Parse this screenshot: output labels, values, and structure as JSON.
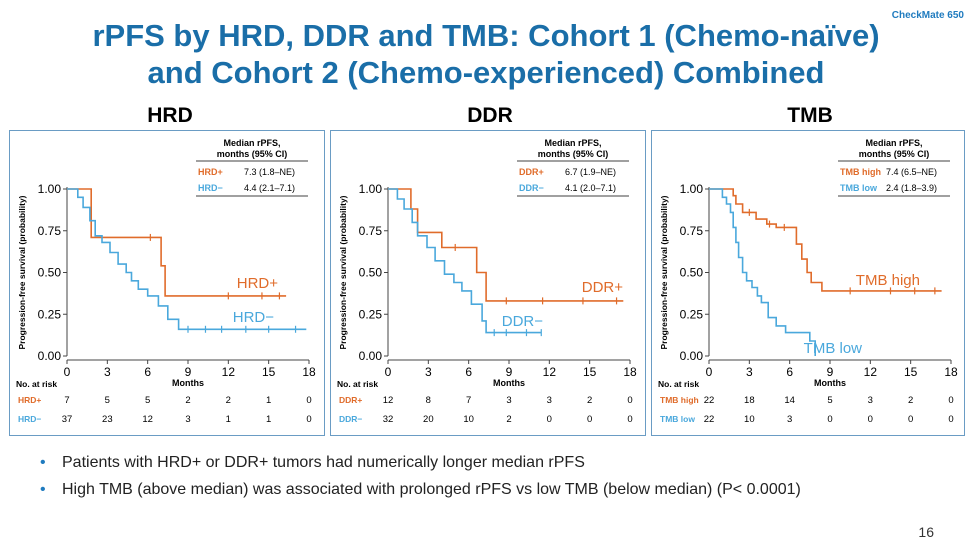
{
  "header": {
    "study_tag": "CheckMate 650",
    "title_line1": "rPFS by HRD, DDR and TMB: Cohort 1 (Chemo-naïve)",
    "title_line2": "and Cohort 2 (Chemo-experienced) Combined"
  },
  "colors": {
    "accent": "#1a6ea8",
    "positive": "#e06c2b",
    "negative": "#4aa8dc",
    "frame": "#6a9cc4"
  },
  "chart_data": [
    {
      "type": "line",
      "panel_title": "HRD",
      "xlabel": "Months",
      "ylabel": "Progression-free survival (probability)",
      "xlim": [
        0,
        18
      ],
      "ylim": [
        0,
        1
      ],
      "x_ticks": [
        "0",
        "3",
        "6",
        "9",
        "12",
        "15",
        "18"
      ],
      "y_ticks": [
        "0.00",
        "0.25",
        "0.50",
        "0.75",
        "1.00"
      ],
      "legend_header": [
        "Median rPFS,",
        "months (95% CI)"
      ],
      "series": [
        {
          "name": "HRD+",
          "legend_label": "HRD+",
          "legend_value": "7.3 (1.8–NE)",
          "curve_label": "HRD+",
          "color": "#e06c2b",
          "x": [
            0,
            1.8,
            1.8,
            7.0,
            7.0,
            7.3,
            7.3,
            16.3
          ],
          "y": [
            1.0,
            1.0,
            0.71,
            0.71,
            0.54,
            0.54,
            0.36,
            0.36
          ],
          "censor_x": [
            6.2,
            12.0,
            14.5,
            15.8
          ]
        },
        {
          "name": "HRD−",
          "legend_label": "HRD−",
          "legend_value": "4.4 (2.1–7.1)",
          "curve_label": "HRD−",
          "color": "#4aa8dc",
          "x": [
            0,
            0.8,
            0.8,
            1.2,
            1.2,
            1.7,
            1.7,
            2.1,
            2.1,
            2.6,
            2.6,
            3.2,
            3.2,
            3.8,
            3.8,
            4.4,
            4.4,
            4.8,
            4.8,
            5.3,
            5.3,
            6.0,
            6.0,
            6.8,
            6.8,
            7.5,
            7.5,
            8.3,
            8.3,
            17.8
          ],
          "y": [
            1.0,
            1.0,
            0.95,
            0.95,
            0.89,
            0.89,
            0.81,
            0.81,
            0.72,
            0.72,
            0.68,
            0.68,
            0.62,
            0.62,
            0.55,
            0.55,
            0.5,
            0.5,
            0.45,
            0.45,
            0.4,
            0.4,
            0.36,
            0.36,
            0.3,
            0.3,
            0.22,
            0.22,
            0.16,
            0.16
          ],
          "censor_x": [
            9.0,
            10.3,
            11.5,
            13.3,
            15.0,
            17.0
          ]
        }
      ],
      "risk_table": {
        "label": "No. at risk",
        "rows": [
          {
            "name": "HRD+",
            "values": [
              "7",
              "5",
              "5",
              "2",
              "2",
              "1",
              "0"
            ]
          },
          {
            "name": "HRD−",
            "values": [
              "37",
              "23",
              "12",
              "3",
              "1",
              "1",
              "0"
            ]
          }
        ]
      }
    },
    {
      "type": "line",
      "panel_title": "DDR",
      "xlabel": "Months",
      "ylabel": "Progression-free survival (probability)",
      "xlim": [
        0,
        18
      ],
      "ylim": [
        0,
        1
      ],
      "x_ticks": [
        "0",
        "3",
        "6",
        "9",
        "12",
        "15",
        "18"
      ],
      "y_ticks": [
        "0.00",
        "0.25",
        "0.50",
        "0.75",
        "1.00"
      ],
      "legend_header": [
        "Median rPFS,",
        "months (95% CI)"
      ],
      "series": [
        {
          "name": "DDR+",
          "legend_label": "DDR+",
          "legend_value": "6.7 (1.9–NE)",
          "curve_label": "DDR+",
          "color": "#e06c2b",
          "x": [
            0,
            1.7,
            1.7,
            2.2,
            2.2,
            4.0,
            4.0,
            6.6,
            6.6,
            7.3,
            7.3,
            17.5
          ],
          "y": [
            1.0,
            1.0,
            0.88,
            0.88,
            0.74,
            0.74,
            0.65,
            0.65,
            0.5,
            0.5,
            0.33,
            0.33
          ],
          "censor_x": [
            5.0,
            8.8,
            11.5,
            14.5,
            17.0
          ]
        },
        {
          "name": "DDR−",
          "legend_label": "DDR−",
          "legend_value": "4.1 (2.0–7.1)",
          "curve_label": "DDR−",
          "color": "#4aa8dc",
          "x": [
            0,
            0.7,
            0.7,
            1.2,
            1.2,
            1.8,
            1.8,
            2.2,
            2.2,
            2.9,
            2.9,
            3.5,
            3.5,
            4.2,
            4.2,
            4.9,
            4.9,
            5.5,
            5.5,
            6.2,
            6.2,
            7.0,
            7.0,
            7.3,
            7.3,
            11.4
          ],
          "y": [
            1.0,
            1.0,
            0.94,
            0.94,
            0.88,
            0.88,
            0.8,
            0.8,
            0.72,
            0.72,
            0.65,
            0.65,
            0.57,
            0.57,
            0.49,
            0.49,
            0.44,
            0.44,
            0.39,
            0.39,
            0.31,
            0.31,
            0.21,
            0.21,
            0.14,
            0.14
          ],
          "censor_x": [
            7.9,
            8.8,
            10.3,
            11.4
          ]
        }
      ],
      "risk_table": {
        "label": "No. at risk",
        "rows": [
          {
            "name": "DDR+",
            "values": [
              "12",
              "8",
              "7",
              "3",
              "3",
              "2",
              "0"
            ]
          },
          {
            "name": "DDR−",
            "values": [
              "32",
              "20",
              "10",
              "2",
              "0",
              "0",
              "0"
            ]
          }
        ]
      }
    },
    {
      "type": "line",
      "panel_title": "TMB",
      "xlabel": "Months",
      "ylabel": "Progression-free survival (probability)",
      "xlim": [
        0,
        18
      ],
      "ylim": [
        0,
        1
      ],
      "x_ticks": [
        "0",
        "3",
        "6",
        "9",
        "12",
        "15",
        "18"
      ],
      "y_ticks": [
        "0.00",
        "0.25",
        "0.50",
        "0.75",
        "1.00"
      ],
      "legend_header": [
        "Median rPFS,",
        "months (95% CI)"
      ],
      "series": [
        {
          "name": "TMB high",
          "legend_label": "TMB high",
          "legend_value": "7.4 (6.5–NE)",
          "curve_label": "TMB high",
          "color": "#e06c2b",
          "x": [
            0,
            1.8,
            1.8,
            2.0,
            2.0,
            2.5,
            2.5,
            3.5,
            3.5,
            4.3,
            4.3,
            5.0,
            5.0,
            6.5,
            6.5,
            6.9,
            6.9,
            7.3,
            7.3,
            7.6,
            7.6,
            8.4,
            8.4,
            17.3
          ],
          "y": [
            1.0,
            1.0,
            0.96,
            0.96,
            0.91,
            0.91,
            0.86,
            0.86,
            0.82,
            0.82,
            0.79,
            0.79,
            0.77,
            0.77,
            0.67,
            0.67,
            0.58,
            0.58,
            0.5,
            0.5,
            0.44,
            0.44,
            0.39,
            0.39
          ],
          "censor_x": [
            3.0,
            4.5,
            5.6,
            10.5,
            13.5,
            15.3,
            16.8
          ]
        },
        {
          "name": "TMB low",
          "legend_label": "TMB low",
          "legend_value": "2.4 (1.8–3.9)",
          "curve_label": "TMB low",
          "color": "#4aa8dc",
          "x": [
            0,
            1.0,
            1.0,
            1.3,
            1.3,
            1.6,
            1.6,
            1.8,
            1.8,
            2.0,
            2.0,
            2.2,
            2.2,
            2.5,
            2.5,
            2.8,
            2.8,
            3.2,
            3.2,
            3.6,
            3.6,
            3.9,
            3.9,
            4.4,
            4.4,
            5.0,
            5.0,
            5.7,
            5.7,
            7.5,
            7.5,
            7.9,
            7.9
          ],
          "y": [
            1.0,
            1.0,
            0.95,
            0.95,
            0.91,
            0.91,
            0.86,
            0.86,
            0.77,
            0.77,
            0.68,
            0.68,
            0.59,
            0.59,
            0.5,
            0.5,
            0.45,
            0.45,
            0.41,
            0.41,
            0.36,
            0.36,
            0.32,
            0.32,
            0.23,
            0.23,
            0.18,
            0.18,
            0.14,
            0.14,
            0.09,
            0.09,
            0.0
          ],
          "censor_x": []
        }
      ],
      "risk_table": {
        "label": "No. at risk",
        "rows": [
          {
            "name": "TMB high",
            "values": [
              "22",
              "18",
              "14",
              "5",
              "3",
              "2",
              "0"
            ]
          },
          {
            "name": "TMB low",
            "values": [
              "22",
              "10",
              "3",
              "0",
              "0",
              "0",
              "0"
            ]
          }
        ]
      }
    }
  ],
  "bullets": [
    "Patients with HRD+ or DDR+ tumors had numerically longer median rPFS",
    "High TMB (above median) was associated with prolonged rPFS vs low TMB (below median) (P< 0.0001)"
  ],
  "page_number": "16"
}
